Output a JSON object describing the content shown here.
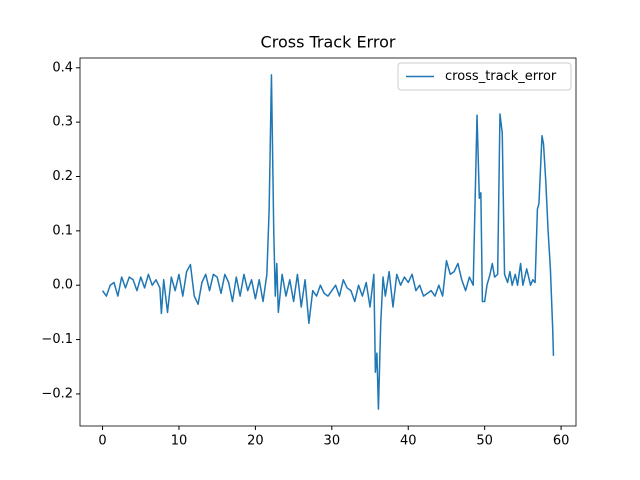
{
  "chart_data": {
    "type": "line",
    "title": "Cross Track Error",
    "x": [
      0,
      0.5,
      1,
      1.5,
      2,
      2.5,
      3,
      3.5,
      4,
      4.5,
      5,
      5.5,
      6,
      6.5,
      7,
      7.5,
      7.7,
      8,
      8.5,
      9,
      9.5,
      10,
      10.5,
      11,
      11.5,
      12,
      12.5,
      13,
      13.5,
      14,
      14.5,
      15,
      15.5,
      16,
      16.5,
      17,
      17.5,
      18,
      18.5,
      19,
      19.5,
      20,
      20.5,
      21,
      21.5,
      21.8,
      22.1,
      22.4,
      22.6,
      22.8,
      23,
      23.5,
      24,
      24.5,
      25,
      25.5,
      26,
      26.5,
      27,
      27.5,
      28,
      28.5,
      29,
      29.5,
      30,
      30.5,
      31,
      31.5,
      32,
      32.5,
      33,
      33.5,
      34,
      34.5,
      35,
      35.5,
      35.7,
      35.9,
      36.1,
      36.4,
      36.7,
      37,
      37.5,
      38,
      38.5,
      39,
      39.5,
      40,
      40.5,
      41,
      41.5,
      42,
      42.5,
      43,
      43.5,
      44,
      44.5,
      45,
      45.5,
      46,
      46.5,
      47,
      47.5,
      48,
      48.5,
      49,
      49.3,
      49.5,
      49.7,
      50,
      50.3,
      50.7,
      51,
      51.3,
      51.7,
      52,
      52.3,
      52.6,
      53,
      53.3,
      53.6,
      54,
      54.3,
      54.7,
      55,
      55.5,
      56,
      56.3,
      56.6,
      56.9,
      57.1,
      57.5,
      57.7,
      58,
      58.3,
      58.6,
      58.9,
      59
    ],
    "series": [
      {
        "name": "cross_track_error",
        "color": "#1f77b4",
        "values": [
          -0.01,
          -0.02,
          0.0,
          0.005,
          -0.02,
          0.015,
          -0.005,
          0.015,
          0.01,
          -0.01,
          0.015,
          -0.005,
          0.02,
          0.0,
          0.01,
          -0.005,
          -0.052,
          0.01,
          -0.05,
          0.015,
          -0.01,
          0.02,
          -0.02,
          0.025,
          0.038,
          -0.02,
          -0.035,
          0.005,
          0.02,
          -0.01,
          0.02,
          0.015,
          -0.015,
          0.02,
          0.005,
          -0.03,
          0.015,
          -0.02,
          0.02,
          -0.01,
          0.01,
          -0.025,
          0.01,
          -0.03,
          0.02,
          0.14,
          0.387,
          0.1,
          -0.02,
          0.04,
          -0.05,
          0.02,
          -0.02,
          0.01,
          -0.03,
          0.02,
          -0.04,
          0.01,
          -0.07,
          -0.01,
          -0.02,
          0.0,
          -0.015,
          -0.02,
          -0.01,
          0.0,
          -0.02,
          0.01,
          -0.005,
          -0.01,
          -0.03,
          0.0,
          -0.02,
          0.005,
          -0.04,
          0.02,
          -0.16,
          -0.125,
          -0.228,
          -0.07,
          0.015,
          -0.02,
          0.025,
          -0.04,
          0.02,
          0.0,
          0.015,
          0.005,
          0.02,
          -0.01,
          0.0,
          -0.02,
          -0.015,
          -0.01,
          -0.02,
          0.0,
          -0.02,
          0.045,
          0.02,
          0.025,
          0.04,
          0.01,
          -0.01,
          0.015,
          0.0,
          0.313,
          0.16,
          0.17,
          -0.03,
          -0.03,
          0.0,
          0.02,
          0.04,
          0.015,
          0.02,
          0.315,
          0.28,
          0.02,
          0.005,
          0.025,
          0.0,
          0.02,
          0.0,
          0.04,
          0.0,
          0.03,
          0.0,
          0.01,
          0.005,
          0.14,
          0.15,
          0.275,
          0.26,
          0.19,
          0.1,
          0.03,
          -0.08,
          -0.13
        ]
      }
    ],
    "xlim": [
      -2.95,
      61.95
    ],
    "xticks": [
      0,
      10,
      20,
      30,
      40,
      50,
      60
    ],
    "ylim": [
      -0.259,
      0.418
    ],
    "yticks": [
      {
        "value": -0.2,
        "label": "−0.2"
      },
      {
        "value": -0.1,
        "label": "−0.1"
      },
      {
        "value": 0,
        "label": "0.0"
      },
      0.1,
      0.2,
      0.3,
      0.4
    ],
    "legend": "upper right"
  }
}
